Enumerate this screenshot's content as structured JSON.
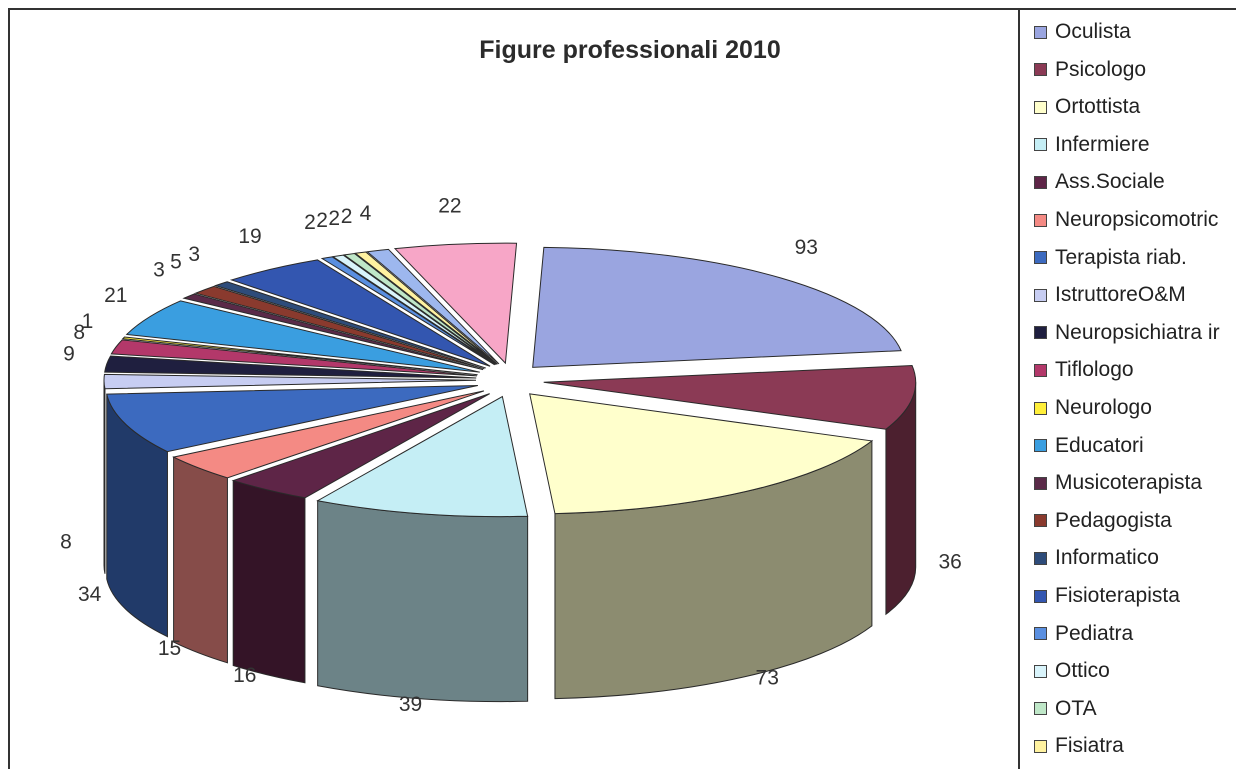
{
  "chart_data": {
    "type": "pie",
    "title": "Figure professionali 2010",
    "legend_position": "right",
    "categories": [
      "Oculista",
      "Psicologo",
      "Ortottista",
      "Infermiere",
      "Ass.Sociale",
      "Neuropsicomotric",
      "Terapista riab.",
      "IstruttoreO&M",
      "Neuropsichiatra ir",
      "Tiflologo",
      "Neurologo",
      "Educatori",
      "Musicoterapista",
      "Pedagogista",
      "Informatico",
      "Fisioterapista",
      "Pediatra",
      "Ottico",
      "OTA",
      "Fisiatra"
    ],
    "values": [
      93,
      36,
      73,
      39,
      16,
      15,
      34,
      8,
      9,
      8,
      1,
      21,
      3,
      5,
      3,
      19,
      2,
      2,
      2,
      2
    ],
    "extra_label": "4",
    "extra_value": 4,
    "extra_top_label": "22",
    "extra_top_value": 22,
    "colors": [
      "#9aa5e0",
      "#8b3a55",
      "#ffffcc",
      "#c5eef5",
      "#5e2547",
      "#f48a84",
      "#3c6abf",
      "#c7cdf2",
      "#1f1f3f",
      "#b3386a",
      "#ffef3a",
      "#3a9ee0",
      "#5a2a48",
      "#8a3a2e",
      "#2e4c7a",
      "#3356b0",
      "#5a8fe0",
      "#d9f4fb",
      "#bfe7c8",
      "#fff2a0"
    ],
    "extra_color": "#9db7ee",
    "extra_top_color": "#f7a6c7"
  }
}
